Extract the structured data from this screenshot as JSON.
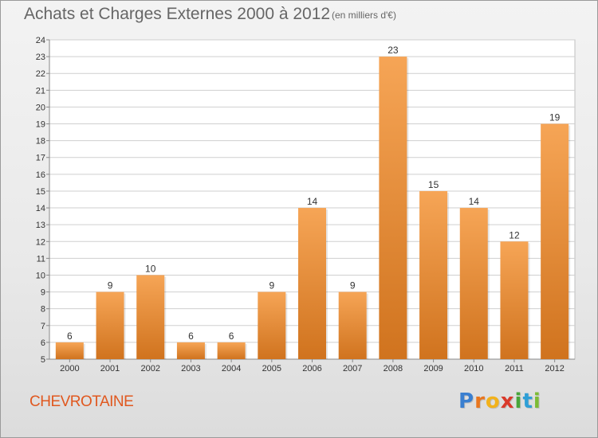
{
  "title": "Achats et Charges Externes 2000 à 2012",
  "subtitle": "(en milliers d'€)",
  "commune": "CHEVROTAINE",
  "logo": {
    "letters": [
      {
        "char": "P",
        "color": "#3a7fd0"
      },
      {
        "char": "r",
        "color": "#e9761e"
      },
      {
        "char": "o",
        "color": "#f2b21c"
      },
      {
        "char": "x",
        "color": "#d93a2b"
      },
      {
        "char": "i",
        "color": "#47a53a"
      },
      {
        "char": "t",
        "color": "#2e9fd6"
      },
      {
        "char": "i",
        "color": "#7dbb35"
      }
    ]
  },
  "colors": {
    "bar_light": "#f6a556",
    "bar_dark": "#d0731e",
    "grid": "#cfcfcf",
    "title": "#666666",
    "commune": "#e0581f"
  },
  "chart_data": {
    "type": "bar",
    "categories": [
      "2000",
      "2001",
      "2002",
      "2003",
      "2004",
      "2005",
      "2006",
      "2007",
      "2008",
      "2009",
      "2010",
      "2011",
      "2012"
    ],
    "values": [
      6,
      9,
      10,
      6,
      6,
      9,
      14,
      9,
      23,
      15,
      14,
      12,
      19
    ],
    "title": "Achats et Charges Externes 2000 à 2012",
    "ylim": [
      5,
      24
    ],
    "yticks": [
      5,
      6,
      7,
      8,
      9,
      10,
      11,
      12,
      13,
      14,
      15,
      16,
      17,
      18,
      19,
      20,
      21,
      22,
      23,
      24
    ],
    "grid": true,
    "legend": "none"
  }
}
